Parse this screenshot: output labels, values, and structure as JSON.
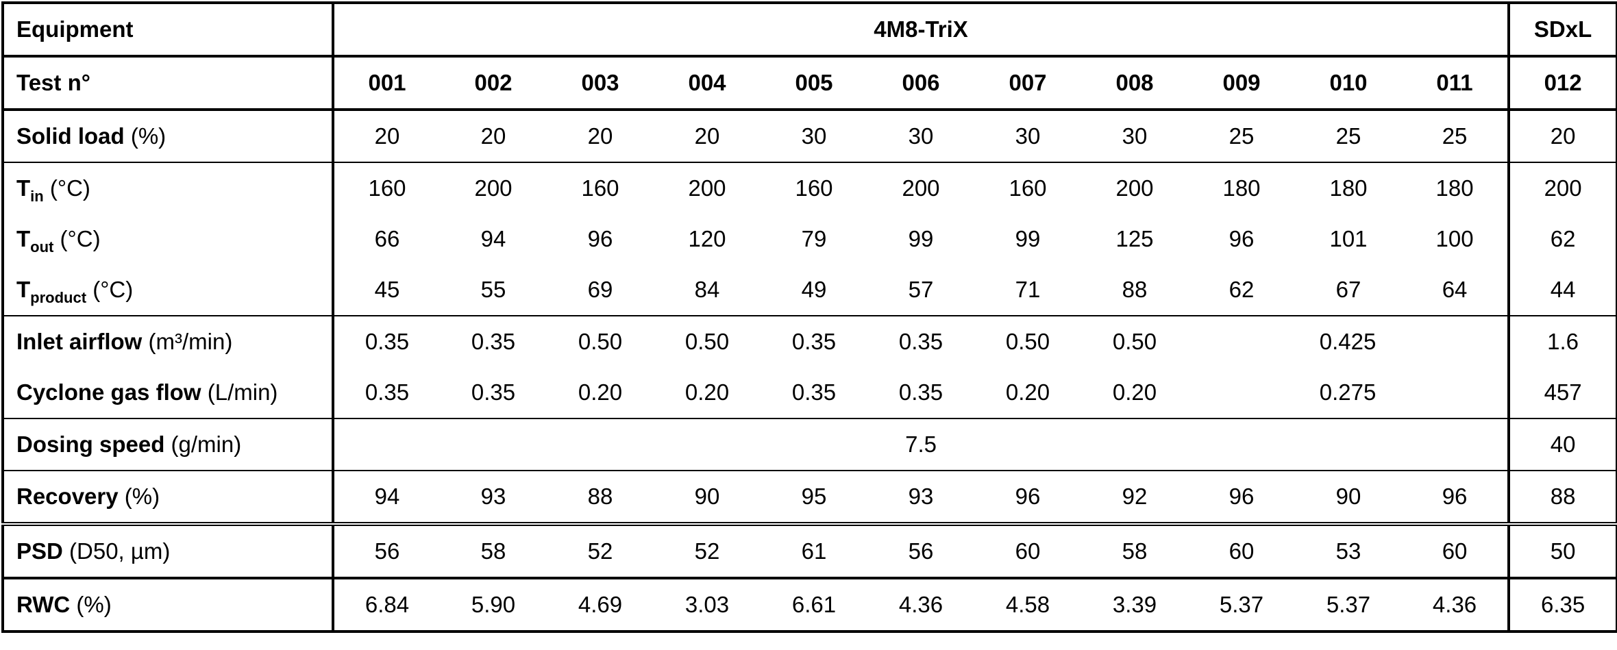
{
  "table": {
    "equipment": {
      "label": "Equipment",
      "groups": [
        "4M8-TriX",
        "SDxL"
      ]
    },
    "tests": {
      "label": "Test n°",
      "values": [
        "001",
        "002",
        "003",
        "004",
        "005",
        "006",
        "007",
        "008",
        "009",
        "010",
        "011",
        "012"
      ]
    },
    "rows": [
      {
        "label": {
          "name": "Solid load",
          "unit": "(%)"
        },
        "values": [
          "20",
          "20",
          "20",
          "20",
          "30",
          "30",
          "30",
          "30",
          "25",
          "25",
          "25",
          "20"
        ]
      },
      {
        "label": {
          "name": "T",
          "sub": "in",
          "unit": "(°C)"
        },
        "values": [
          "160",
          "200",
          "160",
          "200",
          "160",
          "200",
          "160",
          "200",
          "180",
          "180",
          "180",
          "200"
        ]
      },
      {
        "label": {
          "name": "T",
          "sub": "out",
          "unit": "(°C)"
        },
        "values": [
          "66",
          "94",
          "96",
          "120",
          "79",
          "99",
          "99",
          "125",
          "96",
          "101",
          "100",
          "62"
        ]
      },
      {
        "label": {
          "name": "T",
          "sub": "product",
          "unit": "(°C)"
        },
        "values": [
          "45",
          "55",
          "69",
          "84",
          "49",
          "57",
          "71",
          "88",
          "62",
          "67",
          "64",
          "44"
        ]
      },
      {
        "label": {
          "name": "Inlet airflow",
          "unit": "(m³/min)"
        },
        "values": [
          "0.35",
          "0.35",
          "0.50",
          "0.50",
          "0.35",
          "0.35",
          "0.50",
          "0.50",
          "0.425",
          "1.6"
        ]
      },
      {
        "label": {
          "name": "Cyclone gas flow",
          "unit": "(L/min)"
        },
        "values": [
          "0.35",
          "0.35",
          "0.20",
          "0.20",
          "0.35",
          "0.35",
          "0.20",
          "0.20",
          "0.275",
          "457"
        ]
      },
      {
        "label": {
          "name": "Dosing speed",
          "unit": "(g/min)"
        },
        "values": [
          "7.5",
          "40"
        ]
      },
      {
        "label": {
          "name": "Recovery",
          "unit": "(%)"
        },
        "values": [
          "94",
          "93",
          "88",
          "90",
          "95",
          "93",
          "96",
          "92",
          "96",
          "90",
          "96",
          "88"
        ]
      },
      {
        "label": {
          "name": "PSD",
          "unit": "(D50, µm)"
        },
        "values": [
          "56",
          "58",
          "52",
          "52",
          "61",
          "56",
          "60",
          "58",
          "60",
          "53",
          "60",
          "50"
        ]
      },
      {
        "label": {
          "name": "RWC",
          "unit": "(%)"
        },
        "values": [
          "6.84",
          "5.90",
          "4.69",
          "3.03",
          "6.61",
          "4.36",
          "4.58",
          "3.39",
          "5.37",
          "5.37",
          "4.36",
          "6.35"
        ]
      }
    ]
  }
}
